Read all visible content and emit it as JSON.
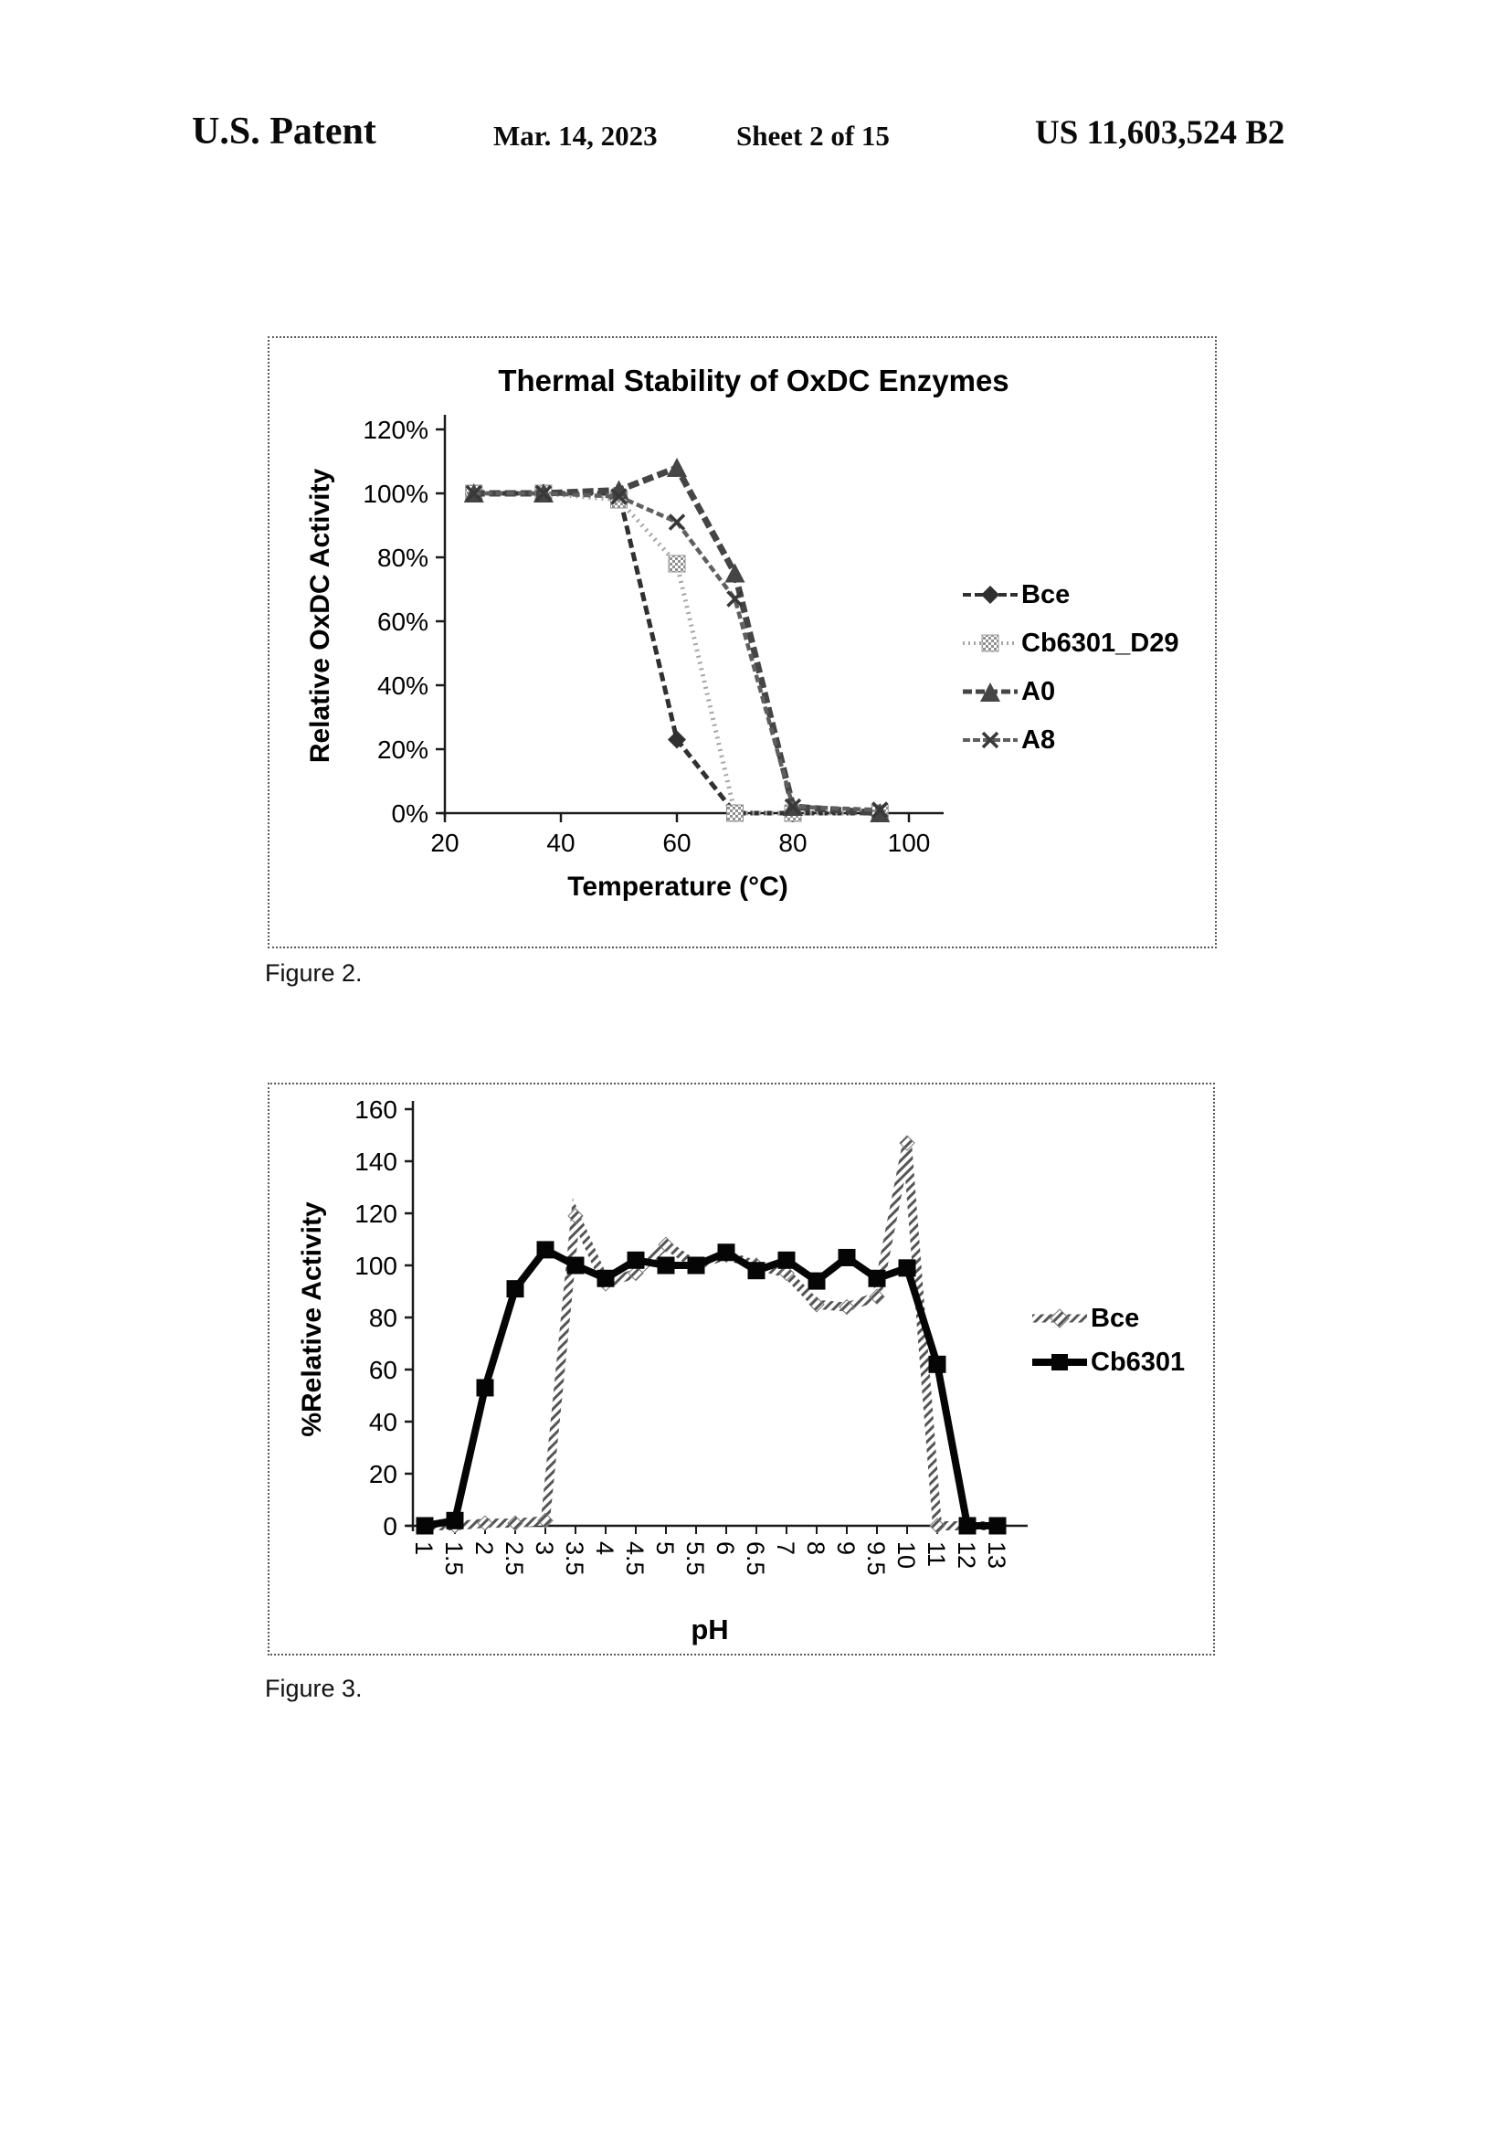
{
  "header": {
    "title": "U.S. Patent",
    "date": "Mar. 14, 2023",
    "sheet": "Sheet 2 of 15",
    "patent_number": "US 11,603,524 B2"
  },
  "figure2": {
    "caption": "Figure 2."
  },
  "figure3": {
    "caption": "Figure 3."
  },
  "colors": {
    "ink": "#0a0a0a",
    "bce_dark": "#303030",
    "cb_light_gray": "#a5a5a5",
    "a0_gray": "#454545",
    "a8_gray": "#5f5f5f",
    "hatch_gray": "#555555"
  },
  "chart_data": [
    {
      "id": "figure2",
      "type": "line",
      "title": "Thermal Stability of OxDC Enzymes",
      "xlabel": "Temperature (°C)",
      "ylabel": "Relative OxDC Activity",
      "x": [
        25,
        37,
        50,
        60,
        70,
        80,
        95
      ],
      "series": [
        {
          "name": "Bce",
          "marker": "diamond",
          "values": [
            100,
            100,
            100,
            23,
            0,
            0,
            0
          ]
        },
        {
          "name": "Cb6301_D29",
          "marker": "square",
          "values": [
            100,
            100,
            98,
            78,
            0,
            0,
            0
          ]
        },
        {
          "name": "A0",
          "marker": "triangle",
          "values": [
            100,
            100,
            101,
            108,
            75,
            2,
            0
          ]
        },
        {
          "name": "A8",
          "marker": "x",
          "values": [
            100,
            100,
            99,
            91,
            67,
            2,
            1
          ]
        }
      ],
      "xticks": [
        20,
        40,
        60,
        80,
        100
      ],
      "yticks": [
        "0%",
        "20%",
        "40%",
        "60%",
        "80%",
        "100%",
        "120%"
      ],
      "xlim": [
        20,
        105
      ],
      "ylim": [
        0,
        120
      ],
      "grid": false,
      "legend_position": "right"
    },
    {
      "id": "figure3",
      "type": "line",
      "title": "",
      "xlabel": "pH",
      "ylabel": "%Relative Activity",
      "categories": [
        "1",
        "1.5",
        "2",
        "2.5",
        "3",
        "3.5",
        "4",
        "4.5",
        "5",
        "5.5",
        "6",
        "6.5",
        "7",
        "8",
        "9",
        "9.5",
        "10",
        "11",
        "12",
        "13"
      ],
      "series": [
        {
          "name": "Bce",
          "marker": "diamond",
          "values": [
            0,
            0,
            1,
            1,
            2,
            119,
            93,
            97,
            108,
            100,
            104,
            100,
            97,
            85,
            84,
            88,
            147,
            0,
            0,
            0
          ]
        },
        {
          "name": "Cb6301",
          "marker": "square",
          "values": [
            0,
            2,
            53,
            91,
            106,
            100,
            95,
            102,
            100,
            100,
            105,
            98,
            102,
            94,
            103,
            95,
            99,
            62,
            0,
            0
          ]
        }
      ],
      "yticks": [
        0,
        20,
        40,
        60,
        80,
        100,
        120,
        140,
        160
      ],
      "ylim": [
        0,
        160
      ],
      "grid": false,
      "legend_position": "right"
    }
  ]
}
